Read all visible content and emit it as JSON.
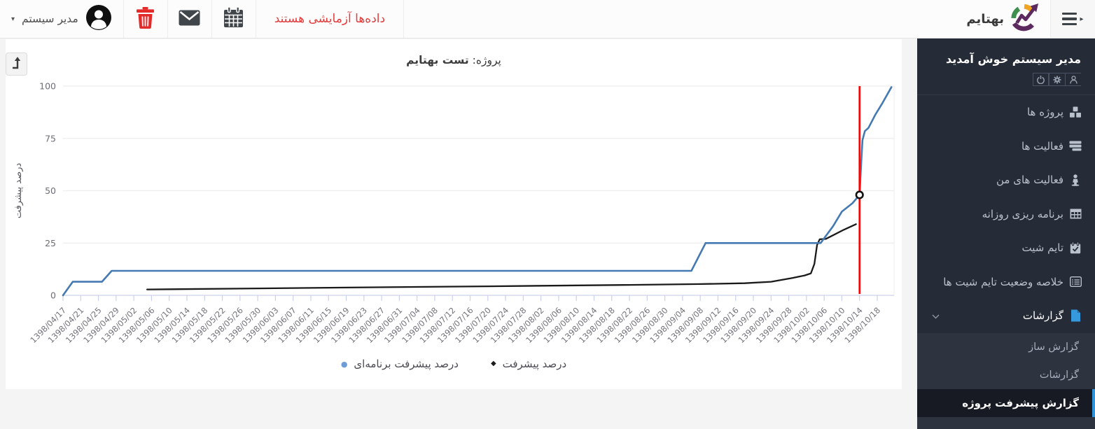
{
  "topbar": {
    "user_menu": {
      "label": "مدیر سیستم"
    },
    "warning": "داده‌ها آزمایشی هستند",
    "brand": "بهتایم"
  },
  "sidebar": {
    "welcome": "مدیر سیستم خوش آمدید",
    "items": [
      {
        "label": "پروژه ها",
        "icon": "cubes-icon"
      },
      {
        "label": "فعالیت ها",
        "icon": "rows-icon"
      },
      {
        "label": "فعالیت های من",
        "icon": "person-pin-icon"
      },
      {
        "label": "برنامه ریزی روزانه",
        "icon": "table-icon"
      },
      {
        "label": "تایم شیت",
        "icon": "calendar-check-icon"
      },
      {
        "label": "خلاصه وضعیت تایم شیت ها",
        "icon": "list-alt-icon"
      },
      {
        "label": "گزارشات",
        "icon": "file-icon",
        "expanded": true,
        "icon_color": "#3599db"
      }
    ],
    "submenu": [
      {
        "label": "گزارش ساز",
        "active": false
      },
      {
        "label": "گزارشات",
        "active": false
      },
      {
        "label": "گزارش پیشرفت پروژه",
        "active": true
      }
    ],
    "active_accent": "#3092d8"
  },
  "main": {
    "title_prefix": "پروژه:",
    "title_name": "تست بهتایم"
  },
  "chart_data": {
    "type": "line",
    "title": "پروژه: تست بهتایم",
    "xlabel": "",
    "ylabel": "درصد پیشرفت",
    "ylim": [
      0,
      100
    ],
    "yticks": [
      0,
      25,
      50,
      75,
      100
    ],
    "grid": "horizontal",
    "legend_position": "bottom",
    "categories": [
      "1398/04/17",
      "1398/04/21",
      "1398/04/25",
      "1398/04/29",
      "1398/05/02",
      "1398/05/06",
      "1398/05/10",
      "1398/05/14",
      "1398/05/18",
      "1398/05/22",
      "1398/05/26",
      "1398/05/30",
      "1398/06/03",
      "1398/06/07",
      "1398/06/11",
      "1398/06/15",
      "1398/06/19",
      "1398/06/23",
      "1398/06/27",
      "1398/06/31",
      "1398/07/04",
      "1398/07/08",
      "1398/07/12",
      "1398/07/16",
      "1398/07/20",
      "1398/07/24",
      "1398/07/28",
      "1398/08/02",
      "1398/08/06",
      "1398/08/10",
      "1398/08/14",
      "1398/08/18",
      "1398/08/22",
      "1398/08/26",
      "1398/08/30",
      "1398/09/04",
      "1398/09/08",
      "1398/09/12",
      "1398/09/16",
      "1398/09/20",
      "1398/09/24",
      "1398/09/28",
      "1398/10/02",
      "1398/10/06",
      "1398/10/10",
      "1398/10/14",
      "1398/10/18"
    ],
    "series": [
      {
        "name": "درصد پیشرفت برنامه‌ای",
        "color": "#4579b2",
        "marker_color": "#6d9cd6",
        "width": 2.6,
        "points": [
          [
            0,
            0
          ],
          [
            0.55,
            6.5
          ],
          [
            2.2,
            6.5
          ],
          [
            2.75,
            11.7
          ],
          [
            35.5,
            11.7
          ],
          [
            36.3,
            25
          ],
          [
            42.8,
            25
          ],
          [
            43.5,
            33
          ],
          [
            44.0,
            40
          ],
          [
            44.6,
            44
          ],
          [
            45.0,
            48
          ],
          [
            45.16,
            74
          ],
          [
            45.3,
            78.5
          ],
          [
            45.5,
            80
          ],
          [
            45.9,
            86.5
          ],
          [
            46.3,
            92
          ],
          [
            46.8,
            99.5
          ]
        ]
      },
      {
        "name": "درصد پیشرفت",
        "color": "#1a1a1a",
        "marker_color": "#1a1a1a",
        "width": 2.3,
        "points": [
          [
            4.75,
            2.8
          ],
          [
            10,
            3.2
          ],
          [
            16,
            3.7
          ],
          [
            24,
            4.3
          ],
          [
            32,
            5
          ],
          [
            36,
            5.4
          ],
          [
            38.5,
            5.8
          ],
          [
            40,
            6.5
          ],
          [
            41.2,
            8.3
          ],
          [
            41.9,
            9.5
          ],
          [
            42.25,
            10.5
          ],
          [
            42.45,
            15
          ],
          [
            42.6,
            24
          ],
          [
            42.75,
            26.8
          ],
          [
            43.1,
            27
          ],
          [
            43.5,
            28.7
          ],
          [
            44.1,
            31.3
          ],
          [
            44.8,
            34
          ]
        ]
      }
    ],
    "today_line": {
      "category": "1398/10/14",
      "index": 45,
      "color": "#ff0000"
    },
    "marker": {
      "series": "درصد پیشرفت برنامه‌ای",
      "index": 45,
      "value": 48
    }
  }
}
